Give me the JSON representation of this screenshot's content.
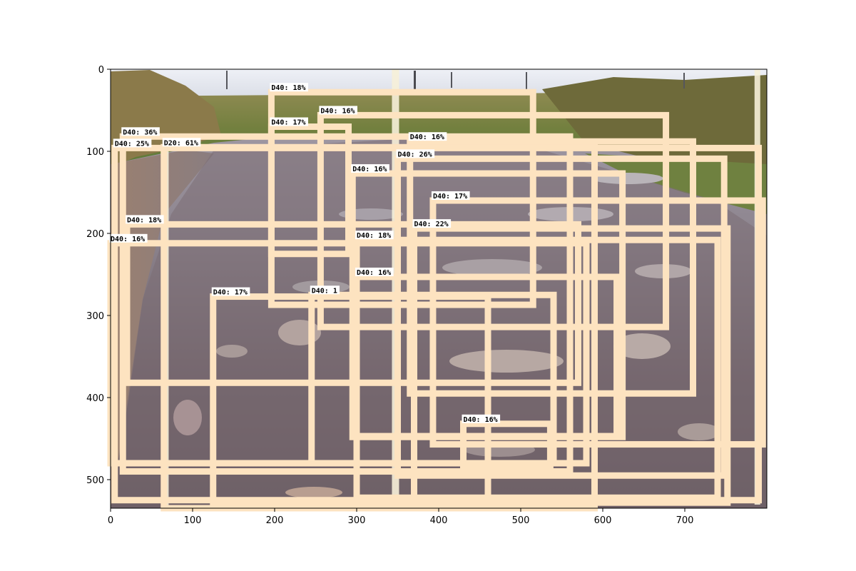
{
  "figure": {
    "x_ticks": [
      "0",
      "100",
      "200",
      "300",
      "400",
      "500",
      "600",
      "700"
    ],
    "y_ticks": [
      "0",
      "100",
      "200",
      "300",
      "400",
      "500"
    ]
  },
  "colors": {
    "box": "#fde3c0",
    "box_light": "#f6f0d8",
    "label_bg": "#ffffff"
  },
  "detections": [
    {
      "label": "D40: 18%"
    },
    {
      "label": "D40: 16%"
    },
    {
      "label": "D40: 17%"
    },
    {
      "label": "D40: 36%"
    },
    {
      "label": "D20: 61%"
    },
    {
      "label": "D40: 16%"
    },
    {
      "label": "D40: 25%"
    },
    {
      "label": "D40: 26%"
    },
    {
      "label": "D40: 16%"
    },
    {
      "label": "D40: 17%"
    },
    {
      "label": "D40: 18%"
    },
    {
      "label": "D40: 22%"
    },
    {
      "label": "D40: 18%"
    },
    {
      "label": "D40: 16%"
    },
    {
      "label": "D40: 16%"
    },
    {
      "label": "D40: 17%"
    },
    {
      "label": "D40: 1"
    },
    {
      "label": "D40: 16%"
    }
  ]
}
